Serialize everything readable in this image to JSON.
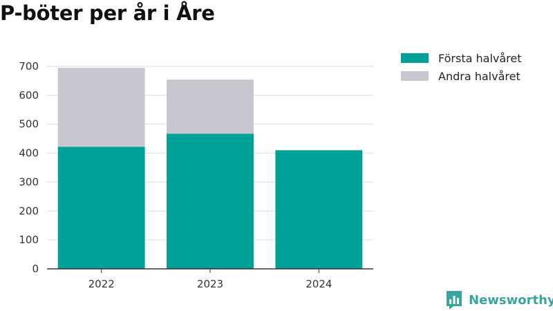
{
  "title": "P-böter per år i Åre",
  "brand": {
    "name": "Newsworthy",
    "icon": "newsworthy-logo-icon"
  },
  "colors": {
    "forsta": "#00a196",
    "andra": "#c8c7d0",
    "brand": "#3aa59c"
  },
  "legend": {
    "position": "top-right"
  },
  "chart_data": {
    "type": "bar",
    "stacked": true,
    "title": "P-böter per år i Åre",
    "xlabel": "",
    "ylabel": "",
    "categories": [
      "2022",
      "2023",
      "2024"
    ],
    "series": [
      {
        "name": "Första halvåret",
        "values": [
          422,
          467,
          410
        ],
        "color": "#00a196"
      },
      {
        "name": "Andra halvåret",
        "values": [
          273,
          187,
          0
        ],
        "color": "#c8c7d0"
      }
    ],
    "ylim": [
      0,
      700
    ],
    "yticks": [
      0,
      100,
      200,
      300,
      400,
      500,
      600,
      700
    ],
    "grid": true
  }
}
